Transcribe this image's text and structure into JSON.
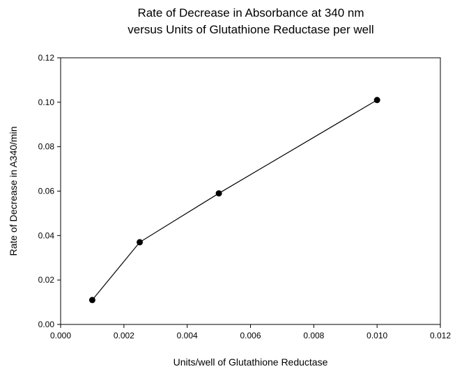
{
  "chart_data": {
    "type": "line",
    "title": [
      "Rate of Decrease in Absorbance at 340 nm",
      "versus Units of Glutathione Reductase per well"
    ],
    "xlabel": "Units/well of Glutathione Reductase",
    "ylabel": "Rate of Decrease in A340/min",
    "xlim": [
      0.0,
      0.012
    ],
    "ylim": [
      0.0,
      0.12
    ],
    "xticks": [
      "0.000",
      "0.002",
      "0.004",
      "0.006",
      "0.008",
      "0.010",
      "0.012"
    ],
    "yticks": [
      "0.00",
      "0.02",
      "0.04",
      "0.06",
      "0.08",
      "0.10",
      "0.12"
    ],
    "grid": false,
    "series": [
      {
        "x": [
          0.001,
          0.0025,
          0.005,
          0.01
        ],
        "y": [
          0.011,
          0.037,
          0.059,
          0.101
        ],
        "marker": "circle",
        "color": "#000000"
      }
    ]
  }
}
